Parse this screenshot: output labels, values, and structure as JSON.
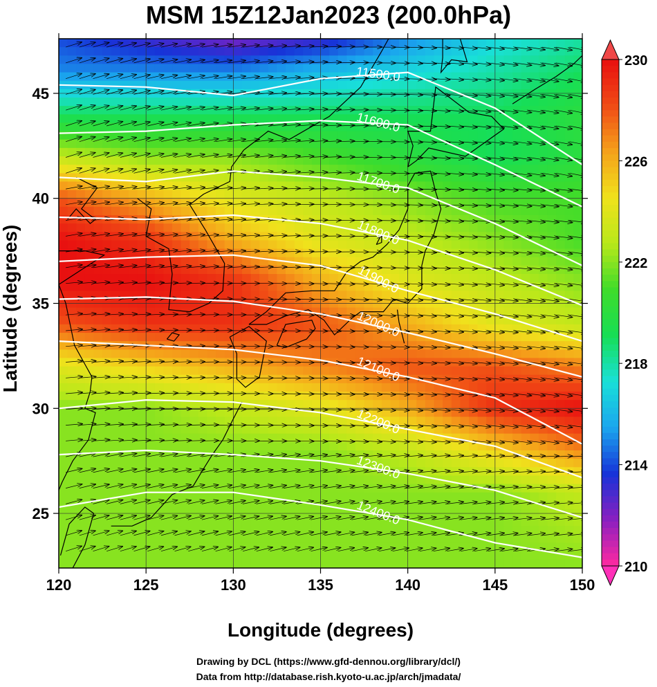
{
  "title": "MSM 15Z12Jan2023 (200.0hPa)",
  "xlabel": "Longitude (degrees)",
  "ylabel": "Latitude  (degrees)",
  "credits": {
    "line1": "Drawing by DCL (https://www.gfd-dennou.org/library/dcl/)",
    "line2": "Data from http://database.rish.kyoto-u.ac.jp/arch/jmadata/"
  },
  "chart_data": {
    "type": "heatmap",
    "xlim": [
      120,
      150
    ],
    "ylim": [
      22.4,
      47.6
    ],
    "x_ticks": [
      "120",
      "125",
      "130",
      "135",
      "140",
      "145",
      "150"
    ],
    "y_ticks": [
      "25",
      "30",
      "35",
      "40",
      "45"
    ],
    "grid": true,
    "colorbar": {
      "min": 210,
      "max": 230,
      "ticks": [
        "210",
        "214",
        "218",
        "222",
        "226",
        "230"
      ],
      "colors": [
        "#ff2aa0",
        "#8a1fc0",
        "#1733d8",
        "#1aa6ee",
        "#19e0d8",
        "#17de55",
        "#3fdc2a",
        "#b9e81a",
        "#f0e21c",
        "#f5a11a",
        "#f04a15",
        "#e81010"
      ]
    },
    "contours": [
      {
        "label": "11500.0",
        "pts": [
          [
            120,
            45.4
          ],
          [
            125,
            45.3
          ],
          [
            130,
            44.9
          ],
          [
            135,
            45.7
          ],
          [
            140,
            46.0
          ],
          [
            145,
            44.3
          ],
          [
            150,
            41.6
          ]
        ]
      },
      {
        "label": "11600.0",
        "pts": [
          [
            120,
            43.1
          ],
          [
            125,
            43.2
          ],
          [
            130,
            43.5
          ],
          [
            135,
            43.7
          ],
          [
            140,
            43.5
          ],
          [
            145,
            41.6
          ],
          [
            150,
            39.6
          ]
        ]
      },
      {
        "label": "11700.0",
        "pts": [
          [
            120,
            41.0
          ],
          [
            125,
            40.8
          ],
          [
            130,
            41.3
          ],
          [
            135,
            41.0
          ],
          [
            140,
            40.5
          ],
          [
            145,
            38.8
          ],
          [
            150,
            36.8
          ]
        ]
      },
      {
        "label": "11800.0",
        "pts": [
          [
            120,
            39.1
          ],
          [
            125,
            39.0
          ],
          [
            130,
            39.2
          ],
          [
            135,
            38.8
          ],
          [
            140,
            38.0
          ],
          [
            145,
            36.6
          ],
          [
            150,
            34.9
          ]
        ]
      },
      {
        "label": "11900.0",
        "pts": [
          [
            120,
            37.0
          ],
          [
            125,
            37.2
          ],
          [
            130,
            37.3
          ],
          [
            135,
            36.8
          ],
          [
            140,
            35.6
          ],
          [
            145,
            34.5
          ],
          [
            150,
            33.2
          ]
        ]
      },
      {
        "label": "12000.0",
        "pts": [
          [
            120,
            35.2
          ],
          [
            125,
            35.3
          ],
          [
            130,
            35.1
          ],
          [
            135,
            34.5
          ],
          [
            140,
            33.6
          ],
          [
            145,
            32.6
          ],
          [
            150,
            31.5
          ]
        ]
      },
      {
        "label": "12100.0",
        "pts": [
          [
            120,
            33.2
          ],
          [
            125,
            33.0
          ],
          [
            130,
            32.8
          ],
          [
            135,
            32.3
          ],
          [
            140,
            31.5
          ],
          [
            145,
            30.5
          ],
          [
            150,
            28.3
          ]
        ]
      },
      {
        "label": "12200.0",
        "pts": [
          [
            120,
            30.0
          ],
          [
            125,
            30.4
          ],
          [
            130,
            30.3
          ],
          [
            135,
            29.8
          ],
          [
            140,
            29.0
          ],
          [
            145,
            28.2
          ],
          [
            150,
            26.7
          ]
        ]
      },
      {
        "label": "12300.0",
        "pts": [
          [
            120,
            27.8
          ],
          [
            125,
            28.0
          ],
          [
            130,
            27.8
          ],
          [
            135,
            27.5
          ],
          [
            140,
            26.9
          ],
          [
            145,
            26.1
          ],
          [
            150,
            24.8
          ]
        ]
      },
      {
        "label": "12400.0",
        "pts": [
          [
            120,
            25.3
          ],
          [
            125,
            26.0
          ],
          [
            130,
            26.0
          ],
          [
            135,
            25.4
          ],
          [
            140,
            24.7
          ],
          [
            145,
            23.6
          ],
          [
            150,
            22.9
          ]
        ]
      }
    ],
    "temperature_field": [
      {
        "lat": 47.6,
        "temps": [
          214,
          213,
          212,
          213,
          215,
          217,
          218
        ]
      },
      {
        "lat": 46.0,
        "temps": [
          215,
          215,
          215,
          216,
          217,
          218,
          219
        ]
      },
      {
        "lat": 44.0,
        "temps": [
          219,
          219,
          219,
          219,
          219,
          219,
          220
        ]
      },
      {
        "lat": 42.0,
        "temps": [
          223,
          222,
          222,
          221,
          220,
          219,
          220
        ]
      },
      {
        "lat": 40.0,
        "temps": [
          228,
          226,
          224,
          223,
          222,
          221,
          221
        ]
      },
      {
        "lat": 38.0,
        "temps": [
          230,
          229,
          226,
          224,
          223,
          222,
          221
        ]
      },
      {
        "lat": 36.0,
        "temps": [
          230,
          230,
          229,
          226,
          224,
          223,
          222
        ]
      },
      {
        "lat": 34.0,
        "temps": [
          228,
          229,
          229,
          228,
          226,
          224,
          223
        ]
      },
      {
        "lat": 32.0,
        "temps": [
          224,
          225,
          226,
          227,
          228,
          228,
          227
        ]
      },
      {
        "lat": 30.0,
        "temps": [
          222,
          222,
          223,
          224,
          226,
          229,
          230
        ]
      },
      {
        "lat": 28.0,
        "temps": [
          222,
          222,
          222,
          222,
          223,
          225,
          227
        ]
      },
      {
        "lat": 26.0,
        "temps": [
          222,
          222,
          222,
          222,
          222,
          222,
          223
        ]
      },
      {
        "lat": 22.4,
        "temps": [
          222,
          222,
          222,
          222,
          222,
          222,
          222
        ]
      }
    ],
    "coastlines": {
      "honshu": [
        [
          130.9,
          34.0
        ],
        [
          131.9,
          34.6
        ],
        [
          133.0,
          35.5
        ],
        [
          134.5,
          35.6
        ],
        [
          135.8,
          35.6
        ],
        [
          136.5,
          36.5
        ],
        [
          137.3,
          37.0
        ],
        [
          138.0,
          37.2
        ],
        [
          138.8,
          37.8
        ],
        [
          139.5,
          38.5
        ],
        [
          140.0,
          39.5
        ],
        [
          140.0,
          40.6
        ],
        [
          140.4,
          41.2
        ],
        [
          141.3,
          41.3
        ],
        [
          141.6,
          40.3
        ],
        [
          141.9,
          39.5
        ],
        [
          141.5,
          38.3
        ],
        [
          141.0,
          37.5
        ],
        [
          140.8,
          36.8
        ],
        [
          140.8,
          35.7
        ],
        [
          140.0,
          35.0
        ],
        [
          139.2,
          35.2
        ],
        [
          138.6,
          34.6
        ],
        [
          137.3,
          34.6
        ],
        [
          136.8,
          34.3
        ],
        [
          135.8,
          33.5
        ],
        [
          135.2,
          34.2
        ],
        [
          134.3,
          34.7
        ],
        [
          133.0,
          34.4
        ],
        [
          131.9,
          34.0
        ],
        [
          130.9,
          34.0
        ]
      ],
      "hokkaido": [
        [
          140.0,
          41.5
        ],
        [
          140.3,
          42.5
        ],
        [
          140.0,
          43.2
        ],
        [
          141.3,
          43.2
        ],
        [
          141.6,
          45.3
        ],
        [
          142.4,
          44.8
        ],
        [
          143.5,
          44.1
        ],
        [
          144.8,
          43.9
        ],
        [
          145.5,
          43.3
        ],
        [
          143.3,
          42.0
        ],
        [
          141.2,
          42.4
        ],
        [
          140.5,
          41.8
        ],
        [
          140.0,
          41.5
        ]
      ],
      "kyushu": [
        [
          129.8,
          33.4
        ],
        [
          130.9,
          33.9
        ],
        [
          131.9,
          33.2
        ],
        [
          131.5,
          31.5
        ],
        [
          130.7,
          31.0
        ],
        [
          130.2,
          31.4
        ],
        [
          130.2,
          32.6
        ],
        [
          129.8,
          33.4
        ]
      ],
      "shikoku": [
        [
          132.5,
          33.0
        ],
        [
          133.0,
          34.0
        ],
        [
          134.5,
          34.2
        ],
        [
          134.7,
          33.8
        ],
        [
          134.2,
          33.3
        ],
        [
          133.0,
          32.9
        ],
        [
          132.5,
          33.0
        ]
      ],
      "korea": [
        [
          124.5,
          40.0
        ],
        [
          125.3,
          39.5
        ],
        [
          125.0,
          38.2
        ],
        [
          126.3,
          37.6
        ],
        [
          126.5,
          36.4
        ],
        [
          126.3,
          34.7
        ],
        [
          127.5,
          34.6
        ],
        [
          128.6,
          35.0
        ],
        [
          129.4,
          35.6
        ],
        [
          129.5,
          36.9
        ],
        [
          128.4,
          38.5
        ],
        [
          127.5,
          39.7
        ],
        [
          128.3,
          40.2
        ],
        [
          129.8,
          40.8
        ],
        [
          129.9,
          41.5
        ],
        [
          130.6,
          42.3
        ]
      ],
      "china_east": [
        [
          121.0,
          41.0
        ],
        [
          122.2,
          40.5
        ],
        [
          121.3,
          39.5
        ],
        [
          122.1,
          39.0
        ],
        [
          121.8,
          38.8
        ],
        [
          121.0,
          39.5
        ],
        [
          120.5,
          39.0
        ]
      ],
      "shandong_china": [
        [
          120.0,
          37.5
        ],
        [
          121.5,
          37.5
        ],
        [
          122.6,
          37.3
        ],
        [
          121.3,
          36.6
        ],
        [
          120.0,
          35.9
        ],
        [
          120.4,
          35.0
        ],
        [
          120.9,
          33.0
        ],
        [
          121.9,
          31.5
        ],
        [
          121.8,
          30.8
        ],
        [
          121.5,
          30.0
        ],
        [
          122.1,
          29.8
        ],
        [
          121.7,
          28.5
        ],
        [
          120.8,
          27.5
        ],
        [
          120.2,
          26.5
        ],
        [
          119.7,
          25.5
        ]
      ],
      "russia_coast": [
        [
          130.6,
          42.3
        ],
        [
          132.0,
          43.2
        ],
        [
          133.2,
          42.8
        ],
        [
          135.5,
          43.9
        ],
        [
          137.3,
          45.3
        ],
        [
          138.5,
          47.0
        ],
        [
          138.9,
          47.6
        ]
      ],
      "sakhalin": [
        [
          142.0,
          47.6
        ],
        [
          142.0,
          46.7
        ],
        [
          141.9,
          46.0
        ],
        [
          142.5,
          46.6
        ],
        [
          143.4,
          46.5
        ],
        [
          143.0,
          47.6
        ]
      ],
      "kurils": [
        [
          146.0,
          44.5
        ],
        [
          147.3,
          45.2
        ],
        [
          148.5,
          45.8
        ],
        [
          149.5,
          46.4
        ],
        [
          150.0,
          46.8
        ]
      ],
      "taiwan": [
        [
          120.1,
          23.0
        ],
        [
          120.6,
          24.5
        ],
        [
          121.5,
          25.3
        ],
        [
          122.0,
          25.0
        ],
        [
          121.5,
          23.5
        ],
        [
          120.8,
          22.4
        ]
      ],
      "jeju": [
        [
          126.2,
          33.3
        ],
        [
          126.5,
          33.6
        ],
        [
          126.9,
          33.5
        ],
        [
          126.6,
          33.2
        ],
        [
          126.2,
          33.3
        ]
      ],
      "ryukyu": [
        [
          130.5,
          30.3
        ],
        [
          130.0,
          29.5
        ],
        [
          129.4,
          28.5
        ],
        [
          128.8,
          27.8
        ],
        [
          128.2,
          27.0
        ],
        [
          127.7,
          26.3
        ],
        [
          126.5,
          25.9
        ],
        [
          125.3,
          24.8
        ],
        [
          124.2,
          24.4
        ],
        [
          123.0,
          24.4
        ]
      ],
      "sado": [
        [
          138.2,
          37.8
        ],
        [
          138.5,
          38.3
        ],
        [
          138.5,
          37.9
        ],
        [
          138.2,
          37.8
        ]
      ],
      "izu_islands": [
        [
          139.4,
          34.7
        ],
        [
          139.5,
          34.1
        ],
        [
          139.8,
          33.1
        ]
      ]
    }
  }
}
